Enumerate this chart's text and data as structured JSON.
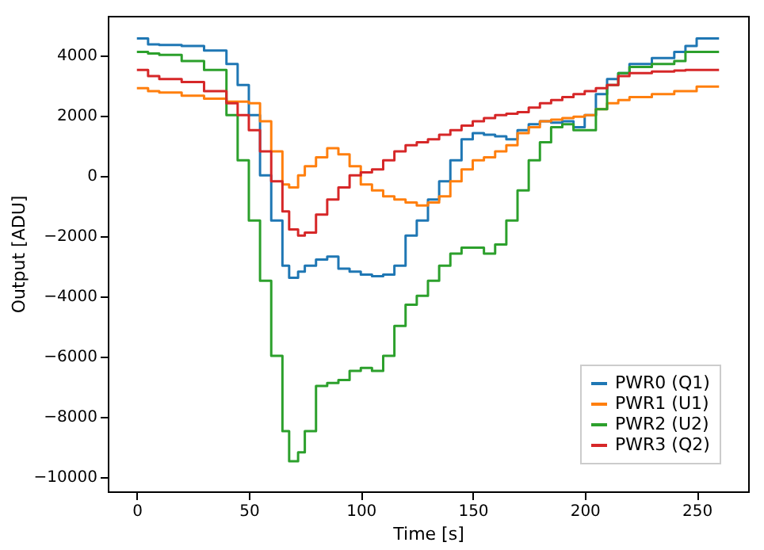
{
  "chart_data": {
    "type": "step",
    "xlabel": "Time [s]",
    "ylabel": "Output [ADU]",
    "xlim": [
      -13,
      273
    ],
    "xticks": [
      0,
      50,
      100,
      150,
      200,
      250
    ],
    "ylim": [
      -10500,
      5300
    ],
    "yticks": [
      -10000,
      -8000,
      -6000,
      -4000,
      -2000,
      0,
      2000,
      4000
    ],
    "grid": false,
    "legend": "bottom right",
    "x": [
      0,
      5,
      10,
      20,
      30,
      40,
      45,
      50,
      55,
      60,
      65,
      68,
      72,
      75,
      80,
      85,
      90,
      95,
      100,
      105,
      110,
      115,
      120,
      125,
      130,
      135,
      140,
      145,
      150,
      155,
      160,
      165,
      170,
      175,
      180,
      185,
      190,
      195,
      200,
      205,
      210,
      215,
      220,
      230,
      240,
      245,
      250,
      260
    ],
    "series": [
      {
        "name": "PWR0 (Q1)",
        "color": "#1f77b4",
        "values": [
          4550,
          4350,
          4330,
          4300,
          4150,
          3700,
          3000,
          2000,
          0,
          -1500,
          -3000,
          -3400,
          -3200,
          -3000,
          -2800,
          -2700,
          -3100,
          -3200,
          -3300,
          -3350,
          -3300,
          -3000,
          -2000,
          -1500,
          -800,
          -200,
          500,
          1200,
          1400,
          1350,
          1300,
          1200,
          1500,
          1700,
          1800,
          1750,
          1800,
          1600,
          2000,
          2700,
          3200,
          3400,
          3700,
          3900,
          4100,
          4300,
          4550,
          4550
        ]
      },
      {
        "name": "PWR1 (U1)",
        "color": "#ff7f0e",
        "values": [
          2900,
          2800,
          2750,
          2650,
          2550,
          2450,
          2450,
          2400,
          1800,
          800,
          -300,
          -400,
          0,
          300,
          600,
          900,
          700,
          300,
          -300,
          -500,
          -700,
          -800,
          -900,
          -1000,
          -900,
          -700,
          -200,
          200,
          500,
          600,
          800,
          1000,
          1400,
          1600,
          1800,
          1850,
          1900,
          1950,
          2000,
          2200,
          2400,
          2500,
          2600,
          2700,
          2800,
          2800,
          2950,
          2950
        ]
      },
      {
        "name": "PWR2 (U2)",
        "color": "#2ca02c",
        "values": [
          4100,
          4050,
          4000,
          3800,
          3500,
          2000,
          500,
          -1500,
          -3500,
          -6000,
          -8500,
          -9500,
          -9200,
          -8500,
          -7000,
          -6900,
          -6800,
          -6500,
          -6400,
          -6500,
          -6000,
          -5000,
          -4300,
          -4000,
          -3500,
          -3000,
          -2600,
          -2400,
          -2400,
          -2600,
          -2300,
          -1500,
          -500,
          500,
          1100,
          1600,
          1700,
          1500,
          1500,
          2200,
          3000,
          3400,
          3600,
          3700,
          3800,
          4100,
          4100,
          4100
        ]
      },
      {
        "name": "PWR3 (Q2)",
        "color": "#d62728",
        "values": [
          3500,
          3300,
          3200,
          3100,
          2800,
          2400,
          2000,
          1500,
          800,
          -200,
          -1200,
          -1800,
          -2000,
          -1900,
          -1300,
          -800,
          -400,
          0,
          100,
          200,
          500,
          800,
          1000,
          1100,
          1200,
          1350,
          1500,
          1650,
          1800,
          1900,
          2000,
          2050,
          2100,
          2250,
          2400,
          2500,
          2600,
          2700,
          2800,
          2900,
          3000,
          3300,
          3400,
          3450,
          3480,
          3500,
          3500,
          3500
        ]
      }
    ]
  }
}
